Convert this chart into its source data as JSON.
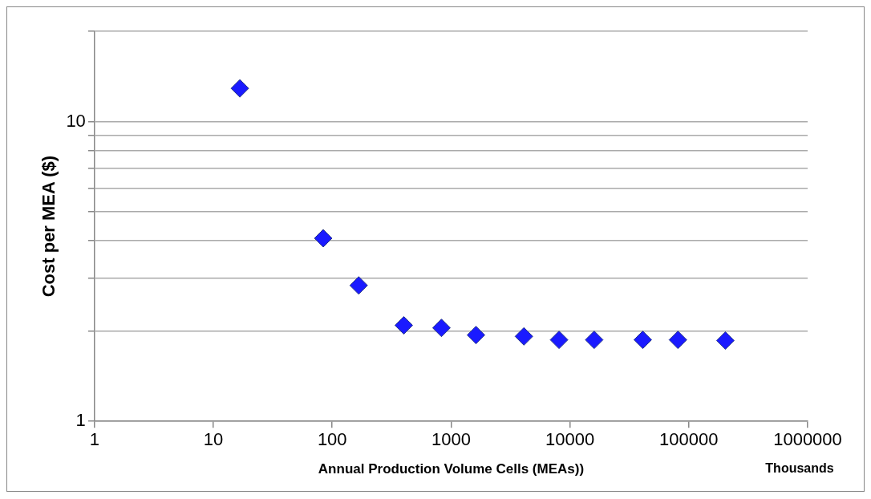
{
  "chart_data": {
    "type": "scatter",
    "xlabel": "Annual Production Volume Cells (MEAs))",
    "ylabel": "Cost per MEA ($)",
    "annotations": [
      "Thousands"
    ],
    "x": [
      16.7,
      84,
      167,
      400,
      830,
      1620,
      4100,
      8100,
      16000,
      41000,
      81000,
      203000
    ],
    "series": [
      {
        "color": "#1a1aff",
        "values": [
          12.9,
          4.08,
          2.84,
          2.09,
          2.05,
          1.94,
          1.92,
          1.87,
          1.87,
          1.87,
          1.87,
          1.86
        ]
      }
    ],
    "log": "xy",
    "xlim": [
      1,
      1000000
    ],
    "xticks": [
      1,
      10,
      100,
      1000,
      10000,
      100000,
      1000000
    ],
    "ylim": [
      1,
      20
    ],
    "yticks": [
      1,
      {
        "value": 2,
        "label": null
      },
      {
        "value": 3,
        "label": null
      },
      {
        "value": 4,
        "label": null
      },
      {
        "value": 5,
        "label": null
      },
      {
        "value": 6,
        "label": null
      },
      {
        "value": 7,
        "label": null
      },
      {
        "value": 8,
        "label": null
      },
      {
        "value": 9,
        "label": null
      },
      10,
      {
        "value": 20,
        "label": null
      }
    ],
    "grid": "y",
    "legend": false,
    "marker": "diamond"
  }
}
